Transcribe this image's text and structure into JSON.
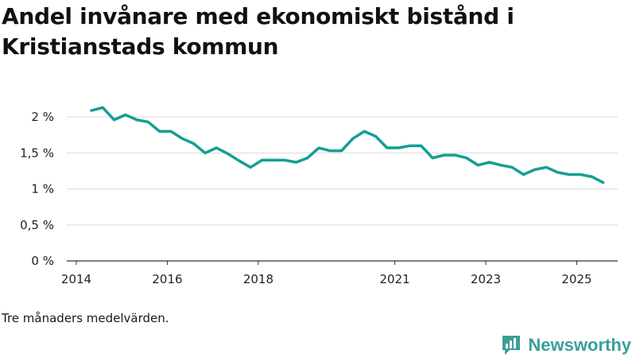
{
  "title": "Andel invånare med ekonomiskt bistånd i Kristianstads kommun",
  "note": "Tre månaders medelvärden.",
  "brand": {
    "name": "Newsworthy"
  },
  "colors": {
    "line": "#159f94",
    "grid": "#d9d9d9",
    "axis": "#333333",
    "brand": "#3a9f97"
  },
  "chart_data": {
    "type": "line",
    "title": "Andel invånare med ekonomiskt bistånd i Kristianstads kommun",
    "xlabel": "",
    "ylabel": "",
    "xlim": [
      2014,
      2025.9
    ],
    "ylim": [
      0,
      2.0
    ],
    "yticks": [
      {
        "value": 0,
        "label": "0 %"
      },
      {
        "value": 0.5,
        "label": "0,5 %"
      },
      {
        "value": 1.0,
        "label": "1 %"
      },
      {
        "value": 1.5,
        "label": "1,5 %"
      },
      {
        "value": 2.0,
        "label": "2 %"
      }
    ],
    "xticks": [
      {
        "value": 2014,
        "label": "2014"
      },
      {
        "value": 2016,
        "label": "2016"
      },
      {
        "value": 2018,
        "label": "2018"
      },
      {
        "value": 2021,
        "label": "2021"
      },
      {
        "value": 2023,
        "label": "2023"
      },
      {
        "value": 2025,
        "label": "2025"
      }
    ],
    "series": [
      {
        "name": "Andel invånare med ekonomiskt bistånd",
        "x": [
          2014.33,
          2014.58,
          2014.83,
          2015.08,
          2015.33,
          2015.58,
          2015.83,
          2016.08,
          2016.33,
          2016.58,
          2016.83,
          2017.08,
          2017.33,
          2017.58,
          2017.83,
          2018.08,
          2018.33,
          2018.58,
          2018.83,
          2019.08,
          2019.33,
          2019.58,
          2019.83,
          2020.08,
          2020.33,
          2020.58,
          2020.83,
          2021.08,
          2021.33,
          2021.58,
          2021.83,
          2022.08,
          2022.33,
          2022.58,
          2022.83,
          2023.08,
          2023.33,
          2023.58,
          2023.83,
          2024.08,
          2024.33,
          2024.58,
          2024.83,
          2025.08,
          2025.33,
          2025.58
        ],
        "values": [
          2.09,
          2.13,
          1.96,
          2.03,
          1.96,
          1.93,
          1.8,
          1.8,
          1.7,
          1.63,
          1.5,
          1.57,
          1.49,
          1.39,
          1.3,
          1.4,
          1.4,
          1.4,
          1.37,
          1.43,
          1.57,
          1.53,
          1.53,
          1.7,
          1.8,
          1.73,
          1.57,
          1.57,
          1.6,
          1.6,
          1.43,
          1.47,
          1.47,
          1.43,
          1.33,
          1.37,
          1.33,
          1.3,
          1.2,
          1.27,
          1.3,
          1.23,
          1.2,
          1.2,
          1.17,
          1.09
        ]
      }
    ]
  }
}
